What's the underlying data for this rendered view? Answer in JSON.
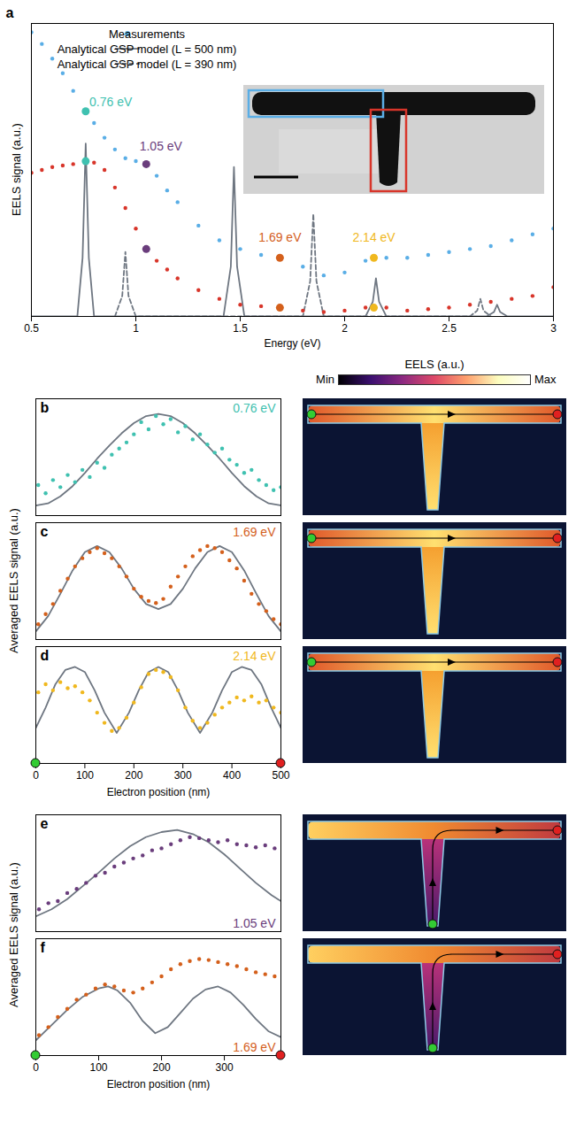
{
  "chart_data": [
    {
      "panel": "a",
      "type": "line",
      "x_label": "Energy (eV)",
      "y_label": "EELS signal (a.u.)",
      "xlim": [
        0.5,
        3
      ],
      "xticks": [
        0.5,
        1,
        1.5,
        2,
        2.5,
        3
      ],
      "ylim": [
        0,
        1
      ],
      "tick_labels": "x",
      "legend": "top-left",
      "series": [
        {
          "name": "Measurements",
          "type": "scatter",
          "marker": "circle",
          "color": "#5aaee6",
          "x": [
            0.5,
            0.55,
            0.6,
            0.65,
            0.7,
            0.76,
            0.8,
            0.85,
            0.9,
            0.95,
            1.0,
            1.05,
            1.1,
            1.15,
            1.2,
            1.3,
            1.4,
            1.5,
            1.6,
            1.69,
            1.8,
            1.9,
            2.0,
            2.1,
            2.14,
            2.2,
            2.3,
            2.4,
            2.5,
            2.6,
            2.7,
            2.8,
            2.9,
            3.0
          ],
          "values": [
            0.97,
            0.93,
            0.88,
            0.83,
            0.77,
            0.7,
            0.66,
            0.61,
            0.57,
            0.54,
            0.53,
            0.52,
            0.48,
            0.43,
            0.39,
            0.31,
            0.26,
            0.23,
            0.21,
            0.2,
            0.17,
            0.14,
            0.15,
            0.19,
            0.2,
            0.2,
            0.2,
            0.21,
            0.22,
            0.23,
            0.24,
            0.26,
            0.28,
            0.3
          ]
        },
        {
          "type": "scatter",
          "marker": "circle",
          "color": "#d8352a",
          "x": [
            0.5,
            0.55,
            0.6,
            0.65,
            0.7,
            0.76,
            0.8,
            0.85,
            0.9,
            0.95,
            1.0,
            1.05,
            1.1,
            1.15,
            1.2,
            1.3,
            1.4,
            1.5,
            1.6,
            1.69,
            1.8,
            1.9,
            2.0,
            2.1,
            2.14,
            2.2,
            2.3,
            2.4,
            2.5,
            2.6,
            2.7,
            2.8,
            2.9,
            3.0
          ],
          "values": [
            0.49,
            0.5,
            0.51,
            0.515,
            0.52,
            0.53,
            0.525,
            0.5,
            0.44,
            0.37,
            0.3,
            0.23,
            0.19,
            0.16,
            0.13,
            0.09,
            0.06,
            0.04,
            0.035,
            0.03,
            0.02,
            0.015,
            0.02,
            0.03,
            0.03,
            0.03,
            0.02,
            0.025,
            0.03,
            0.04,
            0.05,
            0.06,
            0.07,
            0.1
          ]
        },
        {
          "name": "Analytical GSP model (L = 500 nm)",
          "type": "line",
          "line_style": "solid",
          "color": "#6e7681",
          "x": [
            0.5,
            0.72,
            0.745,
            0.76,
            0.775,
            0.8,
            1.42,
            1.455,
            1.47,
            1.485,
            1.52,
            2.1,
            2.135,
            2.15,
            2.165,
            2.2,
            2.68,
            2.715,
            2.73,
            2.745,
            2.78,
            3.0
          ],
          "values": [
            0,
            0,
            0.2,
            0.59,
            0.2,
            0,
            0,
            0.17,
            0.51,
            0.17,
            0,
            0,
            0.05,
            0.13,
            0.05,
            0,
            0,
            0.015,
            0.04,
            0.015,
            0,
            0
          ]
        },
        {
          "name": "Analytical GSP model (L = 390 nm)",
          "type": "line",
          "line_style": "dashed",
          "color": "#6e7681",
          "x": [
            0.9,
            0.935,
            0.95,
            0.965,
            1.0,
            1.8,
            1.835,
            1.85,
            1.865,
            1.9,
            2.6,
            2.635,
            2.65,
            2.665,
            2.7
          ],
          "values": [
            0,
            0.07,
            0.22,
            0.07,
            0,
            0,
            0.12,
            0.35,
            0.12,
            0,
            0,
            0.02,
            0.06,
            0.02,
            0
          ]
        }
      ],
      "markers": [
        {
          "x": 0.76,
          "y": 0.7,
          "color": "#3fc1b0"
        },
        {
          "x": 0.76,
          "y": 0.53,
          "color": "#3fc1b0"
        },
        {
          "x": 1.05,
          "y": 0.52,
          "color": "#6a3d7c"
        },
        {
          "x": 1.05,
          "y": 0.23,
          "color": "#6a3d7c"
        },
        {
          "x": 1.69,
          "y": 0.2,
          "color": "#d4601c"
        },
        {
          "x": 1.69,
          "y": 0.03,
          "color": "#d4601c"
        },
        {
          "x": 2.14,
          "y": 0.2,
          "color": "#f0b81e"
        },
        {
          "x": 2.14,
          "y": 0.03,
          "color": "#f0b81e"
        }
      ],
      "annotations": [
        {
          "text": "0.76 eV",
          "x": 0.88,
          "y": 0.73,
          "color": "#3fc1b0"
        },
        {
          "text": "1.05 eV",
          "x": 1.12,
          "y": 0.58,
          "color": "#6a3d7c"
        },
        {
          "text": "1.69 eV",
          "x": 1.69,
          "y": 0.27,
          "color": "#d4601c"
        },
        {
          "text": "2.14 eV",
          "x": 2.14,
          "y": 0.27,
          "color": "#f0b81e"
        }
      ]
    },
    {
      "panel": "b",
      "type": "scatter",
      "xlim": [
        0,
        500
      ],
      "ylim": [
        0,
        1.15
      ],
      "tick_labels": false,
      "colorbar": {
        "title": "EELS (a.u.)",
        "range": [
          0,
          1
        ],
        "ticks": [
          {
            "value": 0,
            "label": "Min"
          },
          {
            "value": 1,
            "label": "Max"
          }
        ]
      },
      "annotations": [
        {
          "text": "0.76 eV",
          "color": "#3fc1b0"
        }
      ],
      "series": [
        {
          "type": "line",
          "color": "#6e7681",
          "x": [
            0,
            25,
            50,
            75,
            100,
            125,
            150,
            175,
            200,
            225,
            250,
            275,
            300,
            325,
            350,
            375,
            400,
            425,
            450,
            475,
            500
          ],
          "values": [
            0.1,
            0.12,
            0.19,
            0.29,
            0.42,
            0.56,
            0.69,
            0.81,
            0.91,
            0.98,
            1.0,
            0.98,
            0.91,
            0.81,
            0.69,
            0.56,
            0.42,
            0.29,
            0.19,
            0.12,
            0.1
          ]
        },
        {
          "type": "scatter",
          "marker": "circle",
          "color": "#3fc1b0",
          "x": [
            5,
            20,
            35,
            50,
            65,
            80,
            95,
            110,
            125,
            140,
            155,
            170,
            185,
            200,
            215,
            230,
            245,
            260,
            275,
            290,
            305,
            320,
            335,
            350,
            365,
            380,
            395,
            410,
            425,
            440,
            455,
            470,
            485,
            500
          ],
          "values": [
            0.3,
            0.22,
            0.35,
            0.28,
            0.4,
            0.33,
            0.45,
            0.38,
            0.52,
            0.47,
            0.6,
            0.66,
            0.72,
            0.8,
            0.92,
            0.85,
            0.98,
            0.9,
            0.95,
            0.82,
            0.88,
            0.75,
            0.8,
            0.7,
            0.62,
            0.66,
            0.55,
            0.5,
            0.42,
            0.45,
            0.35,
            0.3,
            0.25,
            0.28
          ]
        }
      ]
    },
    {
      "panel": "c",
      "type": "scatter",
      "xlim": [
        0,
        500
      ],
      "ylim": [
        0,
        1.15
      ],
      "tick_labels": false,
      "annotations": [
        {
          "text": "1.69 eV",
          "color": "#d4601c"
        }
      ],
      "series": [
        {
          "type": "line",
          "color": "#6e7681",
          "x": [
            0,
            25,
            50,
            75,
            100,
            125,
            150,
            175,
            200,
            225,
            250,
            275,
            300,
            325,
            350,
            375,
            400,
            425,
            450,
            475,
            500
          ],
          "values": [
            0.08,
            0.23,
            0.45,
            0.68,
            0.86,
            0.92,
            0.86,
            0.7,
            0.5,
            0.35,
            0.3,
            0.35,
            0.5,
            0.7,
            0.86,
            0.92,
            0.86,
            0.68,
            0.45,
            0.23,
            0.08
          ]
        },
        {
          "type": "scatter",
          "marker": "circle",
          "color": "#d4601c",
          "x": [
            5,
            20,
            35,
            50,
            65,
            80,
            95,
            110,
            125,
            140,
            155,
            170,
            185,
            200,
            215,
            230,
            245,
            260,
            275,
            290,
            305,
            320,
            335,
            350,
            365,
            380,
            395,
            410,
            425,
            440,
            455,
            470,
            485,
            500
          ],
          "values": [
            0.15,
            0.25,
            0.35,
            0.48,
            0.6,
            0.72,
            0.8,
            0.86,
            0.9,
            0.85,
            0.8,
            0.72,
            0.62,
            0.5,
            0.42,
            0.38,
            0.36,
            0.4,
            0.52,
            0.62,
            0.72,
            0.82,
            0.88,
            0.92,
            0.9,
            0.86,
            0.78,
            0.7,
            0.58,
            0.45,
            0.35,
            0.28,
            0.2,
            0.15
          ]
        }
      ]
    },
    {
      "panel": "d",
      "type": "scatter",
      "x_label": "Electron position (nm)",
      "y_label": "Averaged EELS signal (a.u.)",
      "xlim": [
        0,
        500
      ],
      "xticks": [
        0,
        100,
        200,
        300,
        400,
        500
      ],
      "ylim": [
        0,
        1.15
      ],
      "tick_labels": "x",
      "annotations": [
        {
          "text": "2.14 eV",
          "color": "#f0b81e"
        }
      ],
      "series": [
        {
          "type": "line",
          "color": "#6e7681",
          "x": [
            0,
            20,
            40,
            60,
            80,
            100,
            120,
            140,
            165,
            190,
            210,
            230,
            250,
            270,
            290,
            310,
            335,
            360,
            380,
            400,
            420,
            440,
            460,
            480,
            500
          ],
          "values": [
            0.35,
            0.55,
            0.78,
            0.92,
            0.95,
            0.9,
            0.72,
            0.5,
            0.3,
            0.5,
            0.72,
            0.9,
            0.95,
            0.9,
            0.72,
            0.5,
            0.3,
            0.5,
            0.72,
            0.9,
            0.95,
            0.92,
            0.78,
            0.55,
            0.35
          ]
        },
        {
          "type": "scatter",
          "marker": "circle",
          "color": "#f0b81e",
          "x": [
            5,
            20,
            35,
            50,
            65,
            80,
            95,
            110,
            125,
            140,
            155,
            170,
            185,
            200,
            215,
            230,
            245,
            260,
            275,
            290,
            305,
            320,
            335,
            350,
            365,
            380,
            395,
            410,
            425,
            440,
            455,
            470,
            485,
            500
          ],
          "values": [
            0.7,
            0.78,
            0.72,
            0.8,
            0.74,
            0.76,
            0.7,
            0.62,
            0.5,
            0.4,
            0.32,
            0.35,
            0.45,
            0.6,
            0.75,
            0.88,
            0.92,
            0.9,
            0.85,
            0.72,
            0.55,
            0.42,
            0.35,
            0.4,
            0.48,
            0.55,
            0.6,
            0.65,
            0.62,
            0.66,
            0.6,
            0.62,
            0.55,
            0.5
          ]
        }
      ]
    },
    {
      "panel": "e",
      "type": "scatter",
      "xlim": [
        0,
        390
      ],
      "ylim": [
        0,
        1.15
      ],
      "tick_labels": false,
      "annotations": [
        {
          "text": "1.05 eV",
          "color": "#6a3d7c"
        }
      ],
      "series": [
        {
          "type": "line",
          "color": "#6e7681",
          "x": [
            0,
            25,
            50,
            75,
            100,
            125,
            150,
            175,
            200,
            225,
            250,
            275,
            300,
            325,
            350,
            375,
            390
          ],
          "values": [
            0.15,
            0.22,
            0.32,
            0.45,
            0.58,
            0.72,
            0.84,
            0.93,
            0.98,
            1.0,
            0.96,
            0.88,
            0.76,
            0.62,
            0.48,
            0.36,
            0.3
          ]
        },
        {
          "type": "scatter",
          "marker": "circle",
          "color": "#6a3d7c",
          "x": [
            5,
            20,
            35,
            50,
            65,
            80,
            95,
            110,
            125,
            140,
            155,
            170,
            185,
            200,
            215,
            230,
            245,
            260,
            275,
            290,
            305,
            320,
            335,
            350,
            365,
            380
          ],
          "values": [
            0.22,
            0.28,
            0.3,
            0.38,
            0.42,
            0.48,
            0.55,
            0.58,
            0.64,
            0.68,
            0.72,
            0.75,
            0.8,
            0.82,
            0.86,
            0.9,
            0.93,
            0.92,
            0.9,
            0.88,
            0.9,
            0.86,
            0.85,
            0.83,
            0.85,
            0.82
          ]
        }
      ]
    },
    {
      "panel": "f",
      "type": "scatter",
      "x_label": "Electron position (nm)",
      "y_label": "Averaged EELS signal (a.u.)",
      "xlim": [
        0,
        390
      ],
      "xticks": [
        0,
        100,
        200,
        300
      ],
      "ylim": [
        0,
        1.15
      ],
      "tick_labels": "x",
      "annotations": [
        {
          "text": "1.69 eV",
          "color": "#d4601c"
        }
      ],
      "series": [
        {
          "type": "line",
          "color": "#6e7681",
          "x": [
            0,
            25,
            50,
            75,
            100,
            115,
            130,
            150,
            170,
            190,
            210,
            230,
            250,
            270,
            290,
            310,
            330,
            350,
            370,
            390
          ],
          "values": [
            0.15,
            0.3,
            0.45,
            0.58,
            0.66,
            0.68,
            0.64,
            0.52,
            0.34,
            0.22,
            0.28,
            0.42,
            0.56,
            0.65,
            0.68,
            0.62,
            0.5,
            0.36,
            0.24,
            0.18
          ]
        },
        {
          "type": "scatter",
          "marker": "circle",
          "color": "#d4601c",
          "x": [
            5,
            20,
            35,
            50,
            65,
            80,
            95,
            110,
            125,
            140,
            155,
            170,
            185,
            200,
            215,
            230,
            245,
            260,
            275,
            290,
            305,
            320,
            335,
            350,
            365,
            380
          ],
          "values": [
            0.2,
            0.28,
            0.38,
            0.46,
            0.55,
            0.6,
            0.66,
            0.7,
            0.68,
            0.64,
            0.62,
            0.66,
            0.72,
            0.78,
            0.85,
            0.9,
            0.93,
            0.95,
            0.94,
            0.92,
            0.9,
            0.88,
            0.85,
            0.82,
            0.8,
            0.78
          ]
        }
      ]
    }
  ]
}
